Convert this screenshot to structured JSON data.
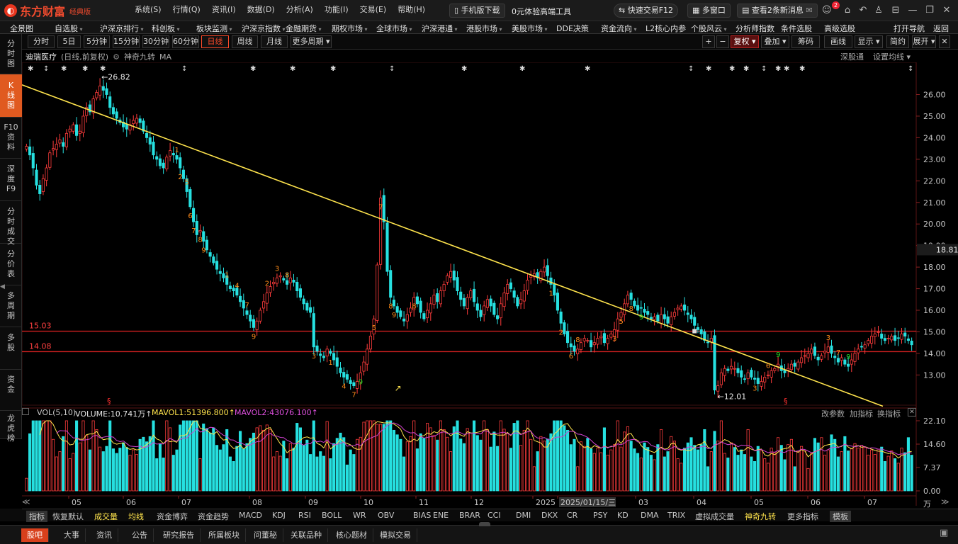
{
  "titlebar": {
    "brand": "东方财富",
    "edition": "经典版",
    "menu": [
      "系统(S)",
      "行情(Q)",
      "资讯(I)",
      "数据(D)",
      "分析(A)",
      "功能(I)",
      "交易(E)",
      "帮助(H)"
    ],
    "mobile_btn": "手机版下载",
    "promo": "0元体验高端工具",
    "fast_trade": "快速交易F12",
    "multi_window": "多窗口",
    "messages": "查看2条新消息",
    "msg_badge": "2"
  },
  "navbar": [
    {
      "label": "全景图",
      "dd": false
    },
    {
      "label": "自选股",
      "dd": true
    },
    {
      "label": "沪深京排行",
      "dd": true
    },
    {
      "label": "科创板",
      "dd": true
    },
    {
      "label": "板块监测",
      "dd": true
    },
    {
      "label": "沪深京指数",
      "dd": true
    },
    {
      "label": "金融期货",
      "dd": true
    },
    {
      "label": "期权市场",
      "dd": true
    },
    {
      "label": "全球市场",
      "dd": true
    },
    {
      "label": "沪深港通",
      "dd": true
    },
    {
      "label": "港股市场",
      "dd": true
    },
    {
      "label": "美股市场",
      "dd": true
    },
    {
      "label": "DDE决策",
      "dd": false
    },
    {
      "label": "资金流向",
      "dd": true
    },
    {
      "label": "L2核心内参",
      "dd": false
    },
    {
      "label": "个股风云",
      "dd": true
    },
    {
      "label": "分析师指数",
      "dd": false
    },
    {
      "label": "条件选股",
      "dd": false
    },
    {
      "label": "高级选股",
      "dd": false
    },
    {
      "label": "打开导航",
      "dd": false
    },
    {
      "label": "返回",
      "dd": false
    }
  ],
  "leftnav": [
    {
      "label": "分时图",
      "active": false
    },
    {
      "label": "K线图",
      "active": true
    },
    {
      "label": "F10资料",
      "active": false
    },
    {
      "label": "深度F9",
      "active": false
    },
    {
      "label": "分时成交",
      "active": false
    },
    {
      "label": "分价表",
      "active": false
    },
    {
      "label": "多周期",
      "active": false
    },
    {
      "label": "多股",
      "active": false
    },
    {
      "label": "资金",
      "active": false
    },
    {
      "label": "龙虎榜",
      "active": false
    }
  ],
  "toolbar": {
    "periods": [
      "分时",
      "5日",
      "5分钟",
      "15分钟",
      "30分钟",
      "60分钟",
      "日线",
      "周线",
      "月线",
      "更多周期"
    ],
    "selected": "日线",
    "right": [
      "+",
      "−",
      "复权",
      "叠加",
      "筹码",
      "画线",
      "显示",
      "简约",
      "展开"
    ]
  },
  "chart_header": {
    "stock": "迪瑞医疗",
    "mode": "(日线,前复权)",
    "indicator": "神奇九转",
    "ma": "MA",
    "right1": "深股通",
    "right2": "设置均线"
  },
  "colors": {
    "up": "#ff3c3c",
    "down": "#26e0e0",
    "yellow": "#ffe44d",
    "magenta": "#d040d0",
    "orange": "#ff8c1a",
    "redline": "#d02020",
    "green": "#22dd22"
  },
  "chart_data": {
    "type": "candlestick",
    "ylim": [
      11.6,
      27.1
    ],
    "yticks": [
      "26.00",
      "25.00",
      "24.00",
      "23.00",
      "22.00",
      "21.00",
      "20.00",
      "19.00",
      "18.00",
      "17.00",
      "16.00",
      "15.00",
      "14.00",
      "13.00"
    ],
    "current_price": "18.81",
    "xticks": [
      "05",
      "06",
      "07",
      "08",
      "09",
      "10",
      "11",
      "12",
      "2025",
      "2025/01/15/三",
      "03",
      "04",
      "05",
      "06",
      "07"
    ],
    "annotations": {
      "high": "26.82",
      "low": "12.01"
    },
    "hlines": [
      {
        "label": "15.03",
        "value": 15.03
      },
      {
        "label": "14.08",
        "value": 14.08
      }
    ],
    "trend_line_start": 26.45,
    "trend_line_end": 11.55,
    "closes": [
      23.6,
      23.2,
      22.6,
      21.8,
      21.4,
      22.1,
      22.6,
      23.3,
      23.5,
      23.7,
      23.9,
      23.6,
      24.2,
      24.4,
      24.6,
      24.1,
      24.3,
      25.0,
      25.4,
      25.2,
      25.8,
      26.1,
      26.4,
      26.2,
      26.0,
      25.4,
      25.1,
      24.9,
      24.7,
      24.5,
      24.4,
      24.6,
      24.8,
      24.9,
      24.7,
      24.3,
      24.0,
      23.7,
      23.2,
      23.0,
      22.7,
      22.6,
      23.1,
      23.4,
      23.2,
      23.0,
      22.6,
      22.1,
      21.5,
      20.8,
      20.1,
      19.5,
      19.7,
      19.2,
      18.8,
      18.5,
      18.2,
      17.9,
      17.7,
      17.5,
      17.2,
      17.0,
      16.9,
      16.7,
      16.4,
      16.1,
      15.8,
      15.5,
      15.2,
      15.5,
      16.0,
      16.4,
      16.8,
      17.1,
      17.3,
      17.5,
      17.6,
      17.4,
      17.2,
      17.5,
      17.3,
      16.9,
      16.6,
      16.3,
      16.0,
      15.9,
      14.3,
      14.1,
      13.9,
      13.8,
      14.2,
      14.0,
      13.7,
      13.4,
      13.1,
      12.9,
      12.8,
      12.6,
      12.5,
      12.7,
      13.1,
      13.6,
      14.2,
      14.8,
      15.6,
      18.1,
      21.2,
      20.1,
      17.8,
      16.6,
      16.2,
      15.9,
      15.7,
      15.5,
      15.8,
      16.1,
      16.6,
      16.3,
      15.9,
      15.6,
      16.0,
      16.3,
      16.7,
      16.4,
      16.9,
      17.2,
      17.6,
      17.8,
      17.4,
      16.9,
      16.5,
      16.2,
      16.6,
      16.9,
      16.4,
      16.0,
      15.7,
      16.2,
      16.5,
      16.2,
      15.8,
      15.6,
      16.3,
      16.8,
      17.2,
      17.0,
      16.6,
      16.2,
      16.5,
      16.9,
      17.4,
      17.6,
      17.7,
      17.5,
      17.8,
      18.0,
      17.6,
      17.2,
      16.7,
      16.0,
      15.4,
      14.9,
      14.5,
      14.3,
      14.1,
      14.2,
      14.5,
      14.7,
      14.6,
      14.3,
      14.5,
      14.7,
      14.8,
      14.5,
      14.7,
      14.9,
      15.1,
      15.6,
      15.9,
      16.3,
      16.7,
      16.5,
      16.2,
      16.0,
      16.1,
      15.9,
      15.8,
      15.6,
      15.7,
      15.5,
      15.8,
      15.6,
      15.4,
      15.7,
      15.9,
      16.1,
      16.2,
      16.0,
      15.8,
      15.6,
      15.3,
      15.1,
      14.9,
      14.6,
      14.5,
      14.7,
      12.3,
      12.5,
      13.1,
      13.3,
      13.2,
      13.4,
      13.3,
      13.1,
      12.9,
      12.8,
      13.1,
      12.9,
      12.8,
      12.6,
      12.7,
      12.9,
      13.0,
      13.2,
      13.3,
      13.5,
      13.2,
      13.1,
      13.3,
      13.5,
      13.4,
      13.6,
      13.8,
      13.9,
      14.0,
      14.2,
      13.9,
      13.7,
      13.9,
      14.1,
      14.3,
      14.0,
      13.8,
      13.6,
      13.8,
      13.5,
      13.4,
      13.7,
      14.0,
      14.2,
      14.3,
      14.4,
      14.6,
      14.8,
      14.9,
      15.0,
      14.7,
      14.6,
      14.7,
      14.8,
      14.6,
      14.7,
      14.9,
      14.8,
      14.6,
      14.4
    ]
  },
  "vol_header": {
    "name": "VOL(5,10)",
    "volume": "VOLUME:10.741万",
    "mavol1": "MAVOL1:51396.800",
    "mavol2": "MAVOL2:43076.100",
    "change_params": "改参数",
    "add_indicator": "加指标",
    "switch_indicator": "换指标"
  },
  "vol_axis": [
    "22.10",
    "14.60",
    "7.37",
    "0.00"
  ],
  "vol_unit": "万",
  "indicator_tabs": [
    "指标",
    "恢复默认",
    "成交量",
    "均线",
    "资金博弈",
    "资金趋势",
    "MACD",
    "KDJ",
    "RSI",
    "BOLL",
    "WR",
    "OBV",
    "BIAS",
    "ENE",
    "BRAR",
    "CCI",
    "DMI",
    "DKX",
    "CR",
    "PSY",
    "KD",
    "DMA",
    "TRIX",
    "虚拟成交量",
    "神奇九转",
    "更多指标",
    "模板"
  ],
  "status_tabs": [
    "股吧",
    "大事",
    "资讯",
    "公告",
    "研究报告",
    "所属板块",
    "问董秘",
    "关联品种",
    "核心题材",
    "模拟交易"
  ]
}
